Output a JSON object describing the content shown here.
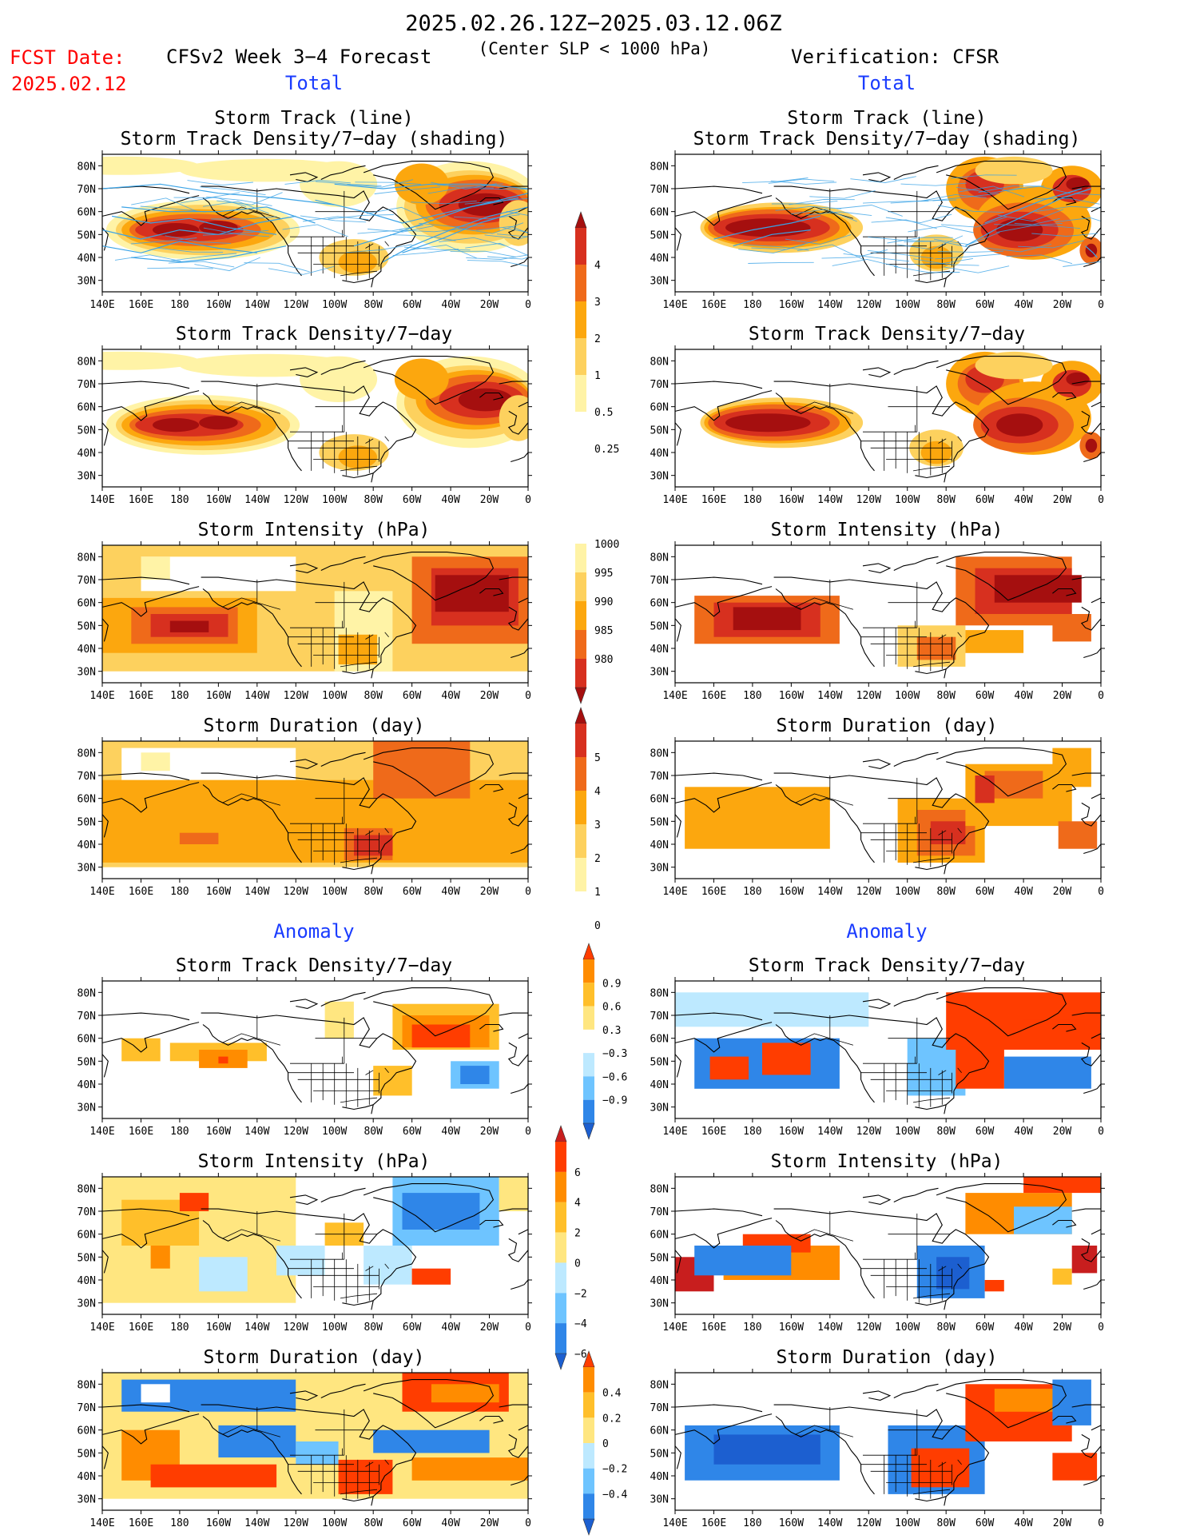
{
  "header": {
    "date_range": "2025.02.26.12Z−2025.03.12.06Z",
    "fcst_label": "FCST Date:",
    "fcst_date": "2025.02.12",
    "model_title": "CFSv2 Week 3−4 Forecast",
    "criterion": "(Center SLP < 1000 hPa)",
    "verification": "Verification: CFSR",
    "section_total": "Total",
    "section_anomaly": "Anomaly"
  },
  "colors": {
    "title": "#000000",
    "fcst": "#ff0000",
    "section": "#0000ff",
    "track_line": "#3aa3e6"
  },
  "panel_titles": {
    "track_line": "Storm Track (line)",
    "track_shading": "Storm Track Density/7−day (shading)",
    "density": "Storm Track Density/7−day",
    "intensity": "Storm Intensity (hPa)",
    "duration": "Storm Duration (day)"
  },
  "map_axes": {
    "lon_labels": [
      "140E",
      "160E",
      "180",
      "160W",
      "140W",
      "120W",
      "100W",
      "80W",
      "60W",
      "40W",
      "20W",
      "0"
    ],
    "lat_labels": [
      "80N",
      "70N",
      "60N",
      "50N",
      "40N",
      "30N"
    ]
  },
  "colorbars": {
    "density": {
      "labels": [
        "4",
        "3",
        "2",
        "1",
        "0.5",
        "0.25"
      ],
      "colors": [
        "#a50f0f",
        "#d7301f",
        "#ef6a1a",
        "#fca70e",
        "#fdd15e",
        "#fff3a6"
      ]
    },
    "intensity": {
      "labels": [
        "1000",
        "995",
        "990",
        "985",
        "980"
      ],
      "colors": [
        "#fff3a6",
        "#fdd15e",
        "#fca70e",
        "#ef6a1a",
        "#d7301f",
        "#a50f0f"
      ]
    },
    "duration": {
      "labels": [
        "5",
        "4",
        "3",
        "2",
        "1",
        "0"
      ],
      "colors": [
        "#a50f0f",
        "#d7301f",
        "#ef6a1a",
        "#fca70e",
        "#fdd15e",
        "#fff3a6"
      ]
    },
    "density_anom": {
      "labels": [
        "0.9",
        "0.6",
        "0.3",
        "−0.3",
        "−0.6",
        "−0.9"
      ],
      "colors": [
        "#ff3d00",
        "#ff8c00",
        "#ffbf2a",
        "#ffe680",
        "#ffffff",
        "#bde9ff",
        "#6ec4ff",
        "#2f86e8",
        "#1c5fd0"
      ]
    },
    "intensity_anom": {
      "labels": [
        "6",
        "4",
        "2",
        "0",
        "−2",
        "−4",
        "−6"
      ],
      "colors": [
        "#c81e1e",
        "#ff3d00",
        "#ff8c00",
        "#ffbf2a",
        "#ffe680",
        "#bde9ff",
        "#6ec4ff",
        "#2f86e8",
        "#1c5fd0"
      ]
    },
    "duration_anom": {
      "labels": [
        "0.4",
        "0.2",
        "0",
        "−0.2",
        "−0.4"
      ],
      "colors": [
        "#ff3d00",
        "#ff8c00",
        "#ffbf2a",
        "#ffe680",
        "#bde9ff",
        "#6ec4ff",
        "#2f86e8",
        "#1c5fd0"
      ]
    }
  },
  "chart_data": [
    {
      "type": "heatmap",
      "title": "Storm Track (line) / Storm Track Density/7−day (shading)",
      "column": "CFSv2 Week 3−4 Forecast",
      "section": "Total",
      "field": "track_shading",
      "ylim": [
        25,
        85
      ],
      "xlim": [
        140,
        360
      ]
    },
    {
      "type": "heatmap",
      "title": "Storm Track Density/7−day",
      "column": "CFSv2 Week 3−4 Forecast",
      "section": "Total",
      "field": "density",
      "ylim": [
        25,
        85
      ],
      "xlim": [
        140,
        360
      ]
    },
    {
      "type": "heatmap",
      "title": "Storm Intensity (hPa)",
      "column": "CFSv2 Week 3−4 Forecast",
      "section": "Total",
      "field": "intensity",
      "ylim": [
        25,
        85
      ],
      "xlim": [
        140,
        360
      ]
    },
    {
      "type": "heatmap",
      "title": "Storm Duration (day)",
      "column": "CFSv2 Week 3−4 Forecast",
      "section": "Total",
      "field": "duration",
      "ylim": [
        25,
        85
      ],
      "xlim": [
        140,
        360
      ]
    },
    {
      "type": "heatmap",
      "title": "Storm Track Density/7−day",
      "column": "CFSv2 Week 3−4 Forecast",
      "section": "Anomaly",
      "field": "density_anom",
      "ylim": [
        25,
        85
      ],
      "xlim": [
        140,
        360
      ]
    },
    {
      "type": "heatmap",
      "title": "Storm Intensity (hPa)",
      "column": "CFSv2 Week 3−4 Forecast",
      "section": "Anomaly",
      "field": "intensity_anom",
      "ylim": [
        25,
        85
      ],
      "xlim": [
        140,
        360
      ]
    },
    {
      "type": "heatmap",
      "title": "Storm Duration (day)",
      "column": "CFSv2 Week 3−4 Forecast",
      "section": "Anomaly",
      "field": "duration_anom",
      "ylim": [
        25,
        85
      ],
      "xlim": [
        140,
        360
      ]
    },
    {
      "type": "heatmap",
      "title": "Storm Track (line) / Storm Track Density/7−day (shading)",
      "column": "Verification: CFSR",
      "section": "Total",
      "field": "track_shading",
      "ylim": [
        25,
        85
      ],
      "xlim": [
        140,
        360
      ]
    },
    {
      "type": "heatmap",
      "title": "Storm Track Density/7−day",
      "column": "Verification: CFSR",
      "section": "Total",
      "field": "density",
      "ylim": [
        25,
        85
      ],
      "xlim": [
        140,
        360
      ]
    },
    {
      "type": "heatmap",
      "title": "Storm Intensity (hPa)",
      "column": "Verification: CFSR",
      "section": "Total",
      "field": "intensity",
      "ylim": [
        25,
        85
      ],
      "xlim": [
        140,
        360
      ]
    },
    {
      "type": "heatmap",
      "title": "Storm Duration (day)",
      "column": "Verification: CFSR",
      "section": "Total",
      "field": "duration",
      "ylim": [
        25,
        85
      ],
      "xlim": [
        140,
        360
      ]
    },
    {
      "type": "heatmap",
      "title": "Storm Track Density/7−day",
      "column": "Verification: CFSR",
      "section": "Anomaly",
      "field": "density_anom",
      "ylim": [
        25,
        85
      ],
      "xlim": [
        140,
        360
      ]
    },
    {
      "type": "heatmap",
      "title": "Storm Intensity (hPa)",
      "column": "Verification: CFSR",
      "section": "Anomaly",
      "field": "intensity_anom",
      "ylim": [
        25,
        85
      ],
      "xlim": [
        140,
        360
      ]
    },
    {
      "type": "heatmap",
      "title": "Storm Duration (day)",
      "column": "Verification: CFSR",
      "section": "Anomaly",
      "field": "duration_anom",
      "ylim": [
        25,
        85
      ],
      "xlim": [
        140,
        360
      ]
    }
  ]
}
